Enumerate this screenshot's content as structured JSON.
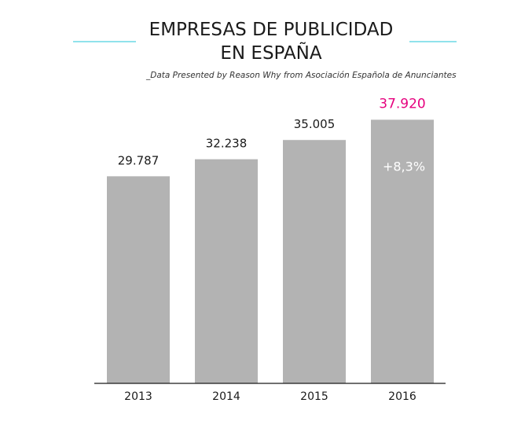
{
  "chart_data": {
    "type": "bar",
    "title_lines": [
      "EMPRESAS DE PUBLICIDAD",
      "EN ESPAÑA"
    ],
    "subtitle": "_Data Presented by Reason Why from Asociación Española de Anunciantes",
    "categories": [
      "2013",
      "2014",
      "2015",
      "2016"
    ],
    "values": [
      29787,
      32238,
      35005,
      37920
    ],
    "value_labels": [
      "29.787",
      "32.238",
      "35.005",
      "37.920"
    ],
    "highlight_index": 3,
    "annotation": {
      "category": "2016",
      "text": "+8,3%"
    },
    "ylim": [
      0,
      40000
    ],
    "grid": false,
    "colors": {
      "bar": "#b3b3b3",
      "highlight_label": "#e6007e",
      "accent_line": "#4dd0e1",
      "axis": "#1a1a1a",
      "text": "#1a1a1a"
    }
  }
}
